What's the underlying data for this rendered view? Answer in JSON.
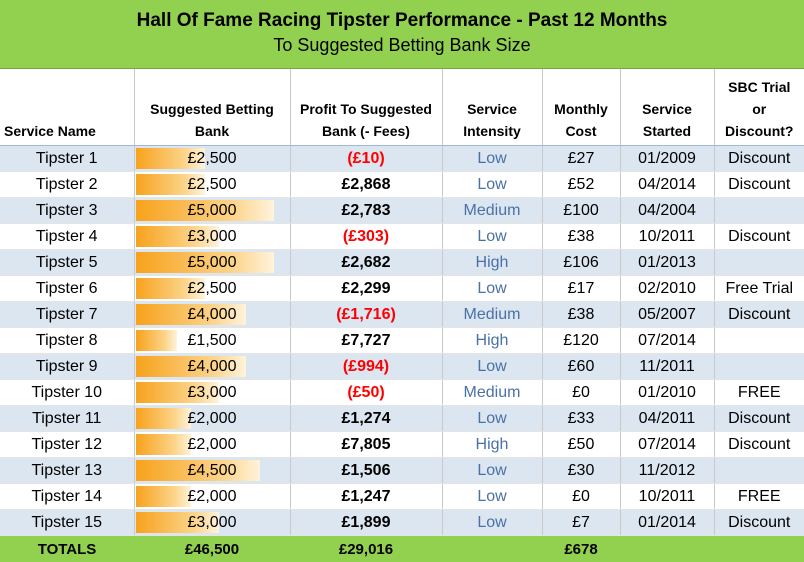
{
  "title": "Hall Of Fame Racing Tipster Performance - Past 12 Months",
  "subtitle": "To Suggested Betting Bank Size",
  "headers": {
    "service_name": "Service Name",
    "bank_line1": "Suggested Betting",
    "bank_line2": "Bank",
    "profit_line1": "Profit To Suggested",
    "profit_line2": "Bank (- Fees)",
    "intensity_line1": "Service",
    "intensity_line2": "Intensity",
    "cost_line1": "Monthly",
    "cost_line2": "Cost",
    "started_line1": "Service",
    "started_line2": "Started",
    "sbc_line1": "SBC Trial",
    "sbc_line2": "or",
    "sbc_line3": "Discount?"
  },
  "colors": {
    "title_bg": "#92d050",
    "row_band": "#dce6f1",
    "negative_profit": "#ff0000",
    "intensity_text": "#4a71a6",
    "bank_bar": "#f7a21c"
  },
  "rows": [
    {
      "name": "Tipster 1",
      "bank": "£2,500",
      "bank_value": 2500,
      "profit": "(£10)",
      "negative": true,
      "intensity": "Low",
      "cost": "£27",
      "started": "01/2009",
      "sbc": "Discount"
    },
    {
      "name": "Tipster 2",
      "bank": "£2,500",
      "bank_value": 2500,
      "profit": "£2,868",
      "negative": false,
      "intensity": "Low",
      "cost": "£52",
      "started": "04/2014",
      "sbc": "Discount"
    },
    {
      "name": "Tipster 3",
      "bank": "£5,000",
      "bank_value": 5000,
      "profit": "£2,783",
      "negative": false,
      "intensity": "Medium",
      "cost": "£100",
      "started": "04/2004",
      "sbc": ""
    },
    {
      "name": "Tipster 4",
      "bank": "£3,000",
      "bank_value": 3000,
      "profit": "(£303)",
      "negative": true,
      "intensity": "Low",
      "cost": "£38",
      "started": "10/2011",
      "sbc": "Discount"
    },
    {
      "name": "Tipster 5",
      "bank": "£5,000",
      "bank_value": 5000,
      "profit": "£2,682",
      "negative": false,
      "intensity": "High",
      "cost": "£106",
      "started": "01/2013",
      "sbc": ""
    },
    {
      "name": "Tipster 6",
      "bank": "£2,500",
      "bank_value": 2500,
      "profit": "£2,299",
      "negative": false,
      "intensity": "Low",
      "cost": "£17",
      "started": "02/2010",
      "sbc": "Free Trial"
    },
    {
      "name": "Tipster 7",
      "bank": "£4,000",
      "bank_value": 4000,
      "profit": "(£1,716)",
      "negative": true,
      "intensity": "Medium",
      "cost": "£38",
      "started": "05/2007",
      "sbc": "Discount"
    },
    {
      "name": "Tipster 8",
      "bank": "£1,500",
      "bank_value": 1500,
      "profit": "£7,727",
      "negative": false,
      "intensity": "High",
      "cost": "£120",
      "started": "07/2014",
      "sbc": ""
    },
    {
      "name": "Tipster 9",
      "bank": "£4,000",
      "bank_value": 4000,
      "profit": "(£994)",
      "negative": true,
      "intensity": "Low",
      "cost": "£60",
      "started": "11/2011",
      "sbc": ""
    },
    {
      "name": "Tipster 10",
      "bank": "£3,000",
      "bank_value": 3000,
      "profit": "(£50)",
      "negative": true,
      "intensity": "Medium",
      "cost": "£0",
      "started": "01/2010",
      "sbc": "FREE"
    },
    {
      "name": "Tipster 11",
      "bank": "£2,000",
      "bank_value": 2000,
      "profit": "£1,274",
      "negative": false,
      "intensity": "Low",
      "cost": "£33",
      "started": "04/2011",
      "sbc": "Discount"
    },
    {
      "name": "Tipster 12",
      "bank": "£2,000",
      "bank_value": 2000,
      "profit": "£7,805",
      "negative": false,
      "intensity": "High",
      "cost": "£50",
      "started": "07/2014",
      "sbc": "Discount"
    },
    {
      "name": "Tipster 13",
      "bank": "£4,500",
      "bank_value": 4500,
      "profit": "£1,506",
      "negative": false,
      "intensity": "Low",
      "cost": "£30",
      "started": "11/2012",
      "sbc": ""
    },
    {
      "name": "Tipster 14",
      "bank": "£2,000",
      "bank_value": 2000,
      "profit": "£1,247",
      "negative": false,
      "intensity": "Low",
      "cost": "£0",
      "started": "10/2011",
      "sbc": "FREE"
    },
    {
      "name": "Tipster 15",
      "bank": "£3,000",
      "bank_value": 3000,
      "profit": "£1,899",
      "negative": false,
      "intensity": "Low",
      "cost": "£7",
      "started": "01/2014",
      "sbc": "Discount"
    }
  ],
  "totals": {
    "label": "TOTALS",
    "bank": "£46,500",
    "profit": "£29,016",
    "cost": "£678"
  }
}
